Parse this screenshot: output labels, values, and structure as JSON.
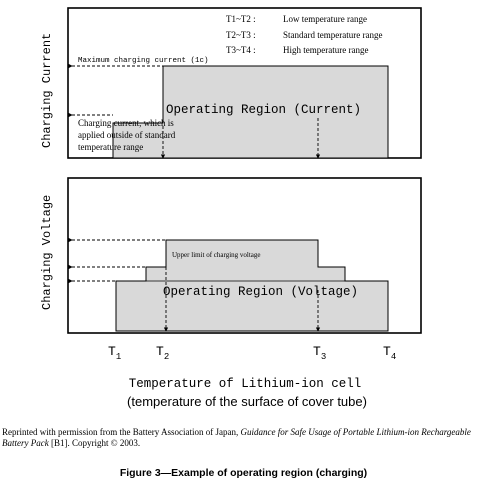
{
  "legend": {
    "lines": [
      {
        "range": "T1~T2 :",
        "label": "Low temperature range"
      },
      {
        "range": "T2~T3 :",
        "label": "Standard temperature range"
      },
      {
        "range": "T3~T4 :",
        "label": "High temperature range"
      }
    ]
  },
  "top_panel": {
    "y_axis_label": "Charging Current",
    "max_current_label": "Maximum charging current (1c)",
    "region_label": "Operating Region (Current)",
    "outside_note_lines": [
      "Charging current, which is",
      "applied outside of standard",
      "temperature range"
    ]
  },
  "bottom_panel": {
    "y_axis_label": "Charging Voltage",
    "upper_limit_label": "Upper limit of charging voltage",
    "region_label": "Operating Region (Voltage)"
  },
  "x_axis": {
    "ticks": [
      {
        "main": "T",
        "sub": "1"
      },
      {
        "main": "T",
        "sub": "2"
      },
      {
        "main": "T",
        "sub": "3"
      },
      {
        "main": "T",
        "sub": "4"
      }
    ],
    "title_line1": "Temperature of Lithium-ion cell",
    "title_line2": "(temperature of the surface of cover tube)"
  },
  "credit": {
    "prefix": "Reprinted with permission from the Battery Association of Japan, ",
    "title_italic": "Guidance for Safe Usage of Portable Lithium-ion Rechargeable Battery Pack",
    "suffix": " [B1]. Copyright © 2003."
  },
  "figure_caption": "Figure 3—Example of operating region (charging)",
  "colors": {
    "region_fill": "#d9d9d9",
    "line": "#000000"
  }
}
